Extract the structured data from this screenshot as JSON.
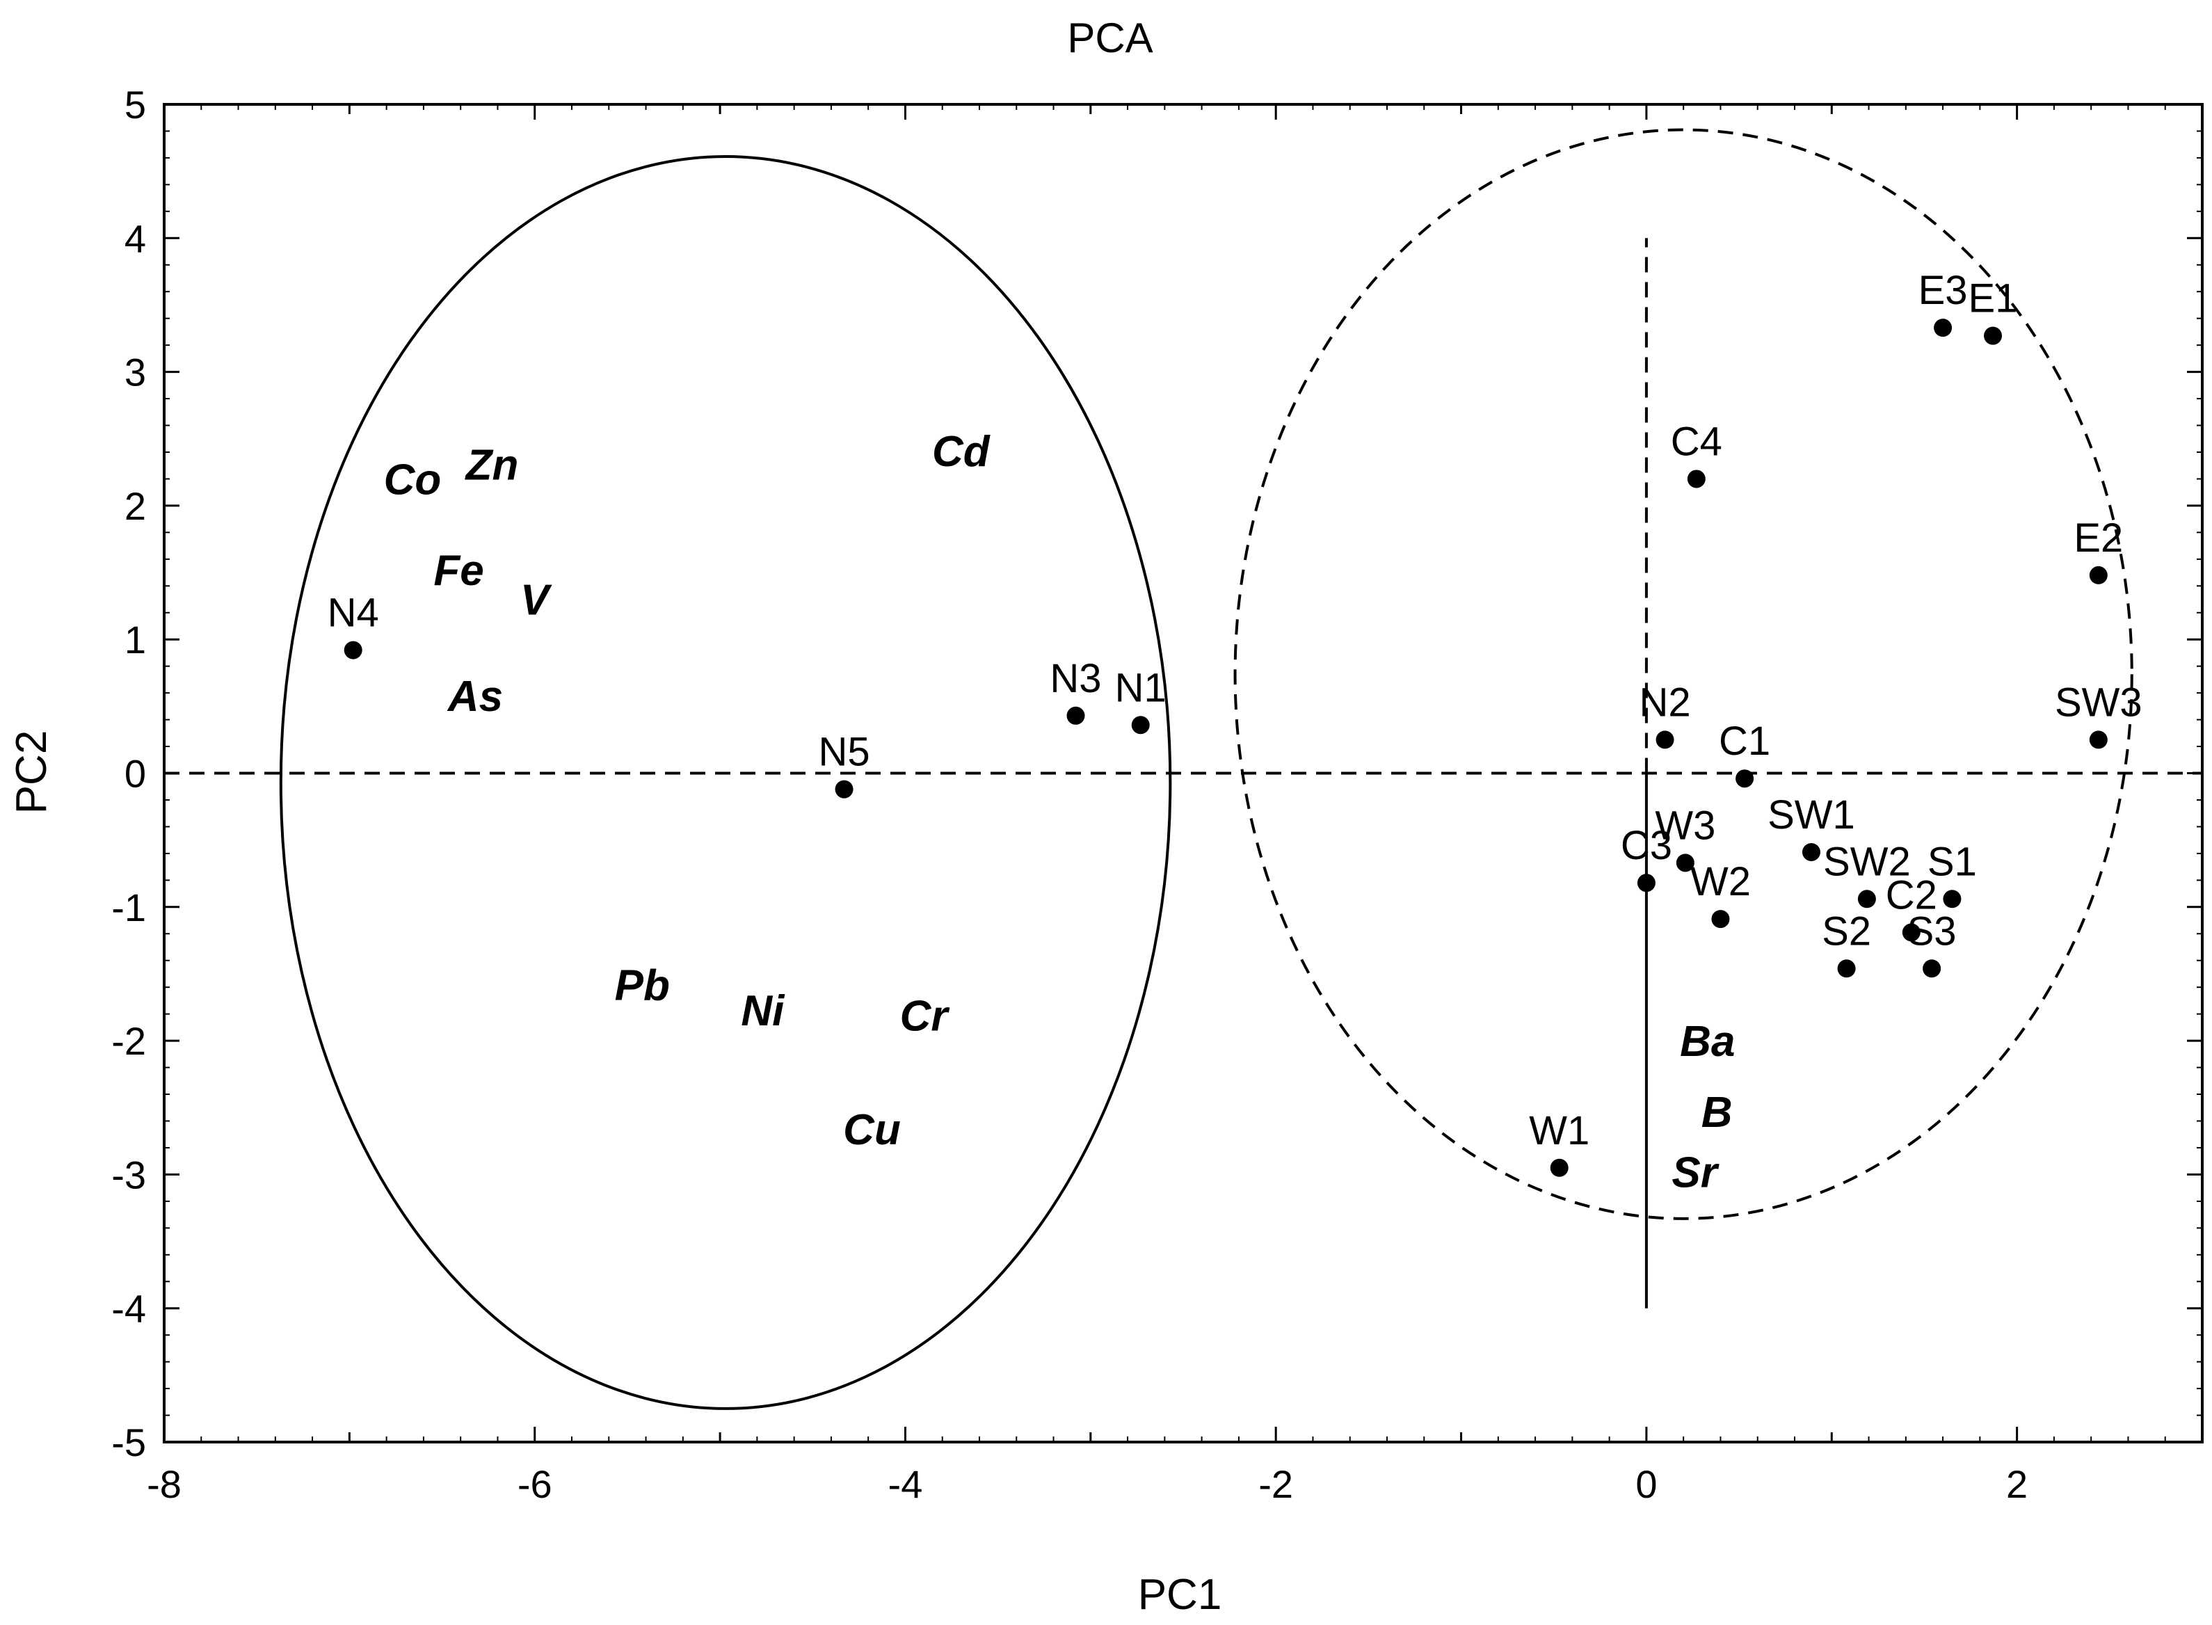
{
  "chart_data": {
    "type": "scatter",
    "title": "PCA",
    "xlabel": "PC1",
    "ylabel": "PC2",
    "xlim": [
      -8,
      3
    ],
    "ylim": [
      -5,
      5
    ],
    "x_ticks": [
      -8,
      -6,
      -4,
      -2,
      0,
      2
    ],
    "y_ticks": [
      -5,
      -4,
      -3,
      -2,
      -1,
      0,
      1,
      2,
      3,
      4,
      5
    ],
    "x_tick_labels": [
      "-8",
      "-6",
      "-4",
      "-2",
      "0",
      "2"
    ],
    "y_tick_labels": [
      "-5",
      "-4",
      "-3",
      "-2",
      "-1",
      "0",
      "1",
      "2",
      "3",
      "4",
      "5"
    ],
    "grid": false,
    "points": [
      {
        "label": "N4",
        "x": -6.98,
        "y": 0.92
      },
      {
        "label": "N5",
        "x": -4.33,
        "y": -0.12
      },
      {
        "label": "N3",
        "x": -3.08,
        "y": 0.43
      },
      {
        "label": "N1",
        "x": -2.73,
        "y": 0.36
      },
      {
        "label": "C4",
        "x": 0.27,
        "y": 2.2
      },
      {
        "label": "E3",
        "x": 1.6,
        "y": 3.33
      },
      {
        "label": "E1",
        "x": 1.87,
        "y": 3.27
      },
      {
        "label": "E2",
        "x": 2.44,
        "y": 1.48
      },
      {
        "label": "SW3",
        "x": 2.44,
        "y": 0.25
      },
      {
        "label": "N2",
        "x": 0.1,
        "y": 0.25
      },
      {
        "label": "C1",
        "x": 0.53,
        "y": -0.04
      },
      {
        "label": "C3",
        "x": 0.0,
        "y": -0.82
      },
      {
        "label": "W3",
        "x": 0.21,
        "y": -0.67
      },
      {
        "label": "W2",
        "x": 0.4,
        "y": -1.09
      },
      {
        "label": "SW1",
        "x": 0.89,
        "y": -0.59
      },
      {
        "label": "SW2",
        "x": 1.19,
        "y": -0.94
      },
      {
        "label": "S1",
        "x": 1.65,
        "y": -0.94
      },
      {
        "label": "C2",
        "x": 1.43,
        "y": -1.19
      },
      {
        "label": "S2",
        "x": 1.08,
        "y": -1.46
      },
      {
        "label": "S3",
        "x": 1.54,
        "y": -1.46
      },
      {
        "label": "W1",
        "x": -0.47,
        "y": -2.95
      }
    ],
    "variables": [
      {
        "label": "Co",
        "x": -6.66,
        "y": 2.2
      },
      {
        "label": "Zn",
        "x": -6.23,
        "y": 2.31
      },
      {
        "label": "Cd",
        "x": -3.7,
        "y": 2.41
      },
      {
        "label": "Fe",
        "x": -6.41,
        "y": 1.52
      },
      {
        "label": "V",
        "x": -6.0,
        "y": 1.3
      },
      {
        "label": "As",
        "x": -6.32,
        "y": 0.58
      },
      {
        "label": "Pb",
        "x": -5.42,
        "y": -1.58
      },
      {
        "label": "Ni",
        "x": -4.77,
        "y": -1.77
      },
      {
        "label": "Cr",
        "x": -3.9,
        "y": -1.81
      },
      {
        "label": "Cu",
        "x": -4.18,
        "y": -2.66
      },
      {
        "label": "Ba",
        "x": 0.33,
        "y": -2.0
      },
      {
        "label": "B",
        "x": 0.38,
        "y": -2.53
      },
      {
        "label": "Sr",
        "x": 0.26,
        "y": -2.98
      }
    ],
    "ellipses": [
      {
        "style": "solid",
        "cx": -4.97,
        "cy": -0.07,
        "rx": 2.4,
        "ry": 4.68
      },
      {
        "style": "dashed",
        "cx": 0.2,
        "cy": 0.74,
        "rx": 2.42,
        "ry": 4.07
      }
    ],
    "reference_lines": [
      {
        "style": "dashed",
        "x1": -8,
        "y1": 0,
        "x2": 3,
        "y2": 0
      },
      {
        "style": "dashed",
        "x1": 0,
        "y1": 0,
        "x2": 0,
        "y2": 4
      },
      {
        "style": "solid",
        "x1": 0,
        "y1": 0,
        "x2": 0,
        "y2": -4
      }
    ]
  }
}
